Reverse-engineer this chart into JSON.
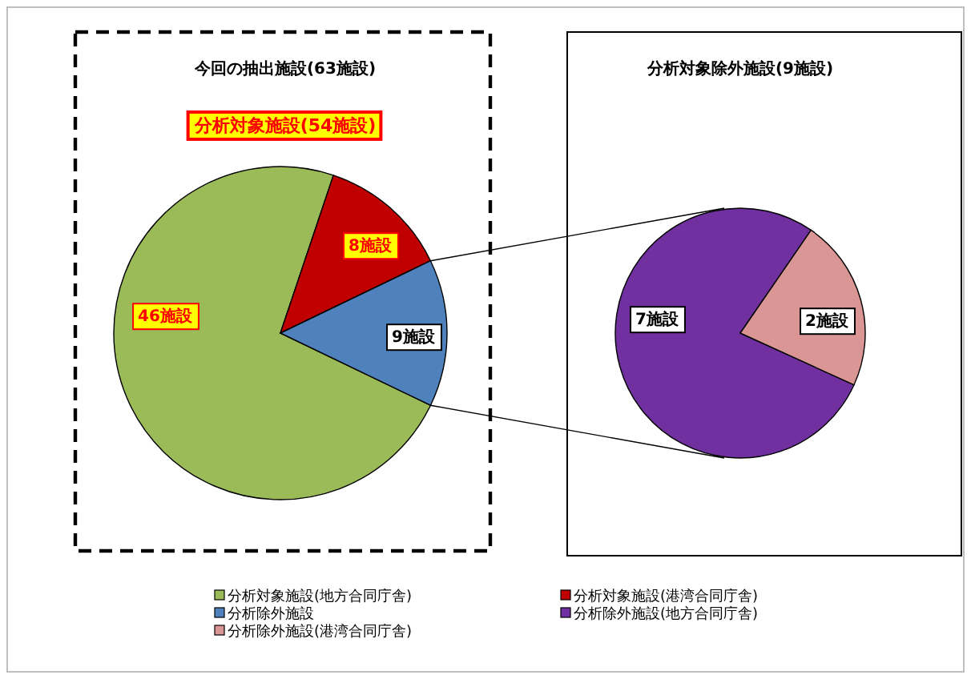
{
  "chart_data": [
    {
      "type": "pie",
      "title": "今回の抽出施設(63施設)",
      "annotations": [
        "分析対象施設(54施設)"
      ],
      "legend": "bottom",
      "categories": [
        "分析対象施設(地方合同庁舎)",
        "分析対象施設(港湾合同庁舎)",
        "分析除外施設"
      ],
      "values": [
        46,
        8,
        9
      ],
      "colors": [
        "#9bbb59",
        "#c00000",
        "#4f81bd"
      ],
      "value_labels": [
        "46施設",
        "8施設",
        "9施設"
      ]
    },
    {
      "type": "pie",
      "title": "分析対象除外施設(9施設)",
      "legend": "bottom",
      "categories": [
        "分析除外施設(地方合同庁舎)",
        "分析除外施設(港湾合同庁舎)"
      ],
      "values": [
        7,
        2
      ],
      "colors": [
        "#7030a0",
        "#d99694"
      ],
      "value_labels": [
        "7施設",
        "2施設"
      ]
    }
  ]
}
